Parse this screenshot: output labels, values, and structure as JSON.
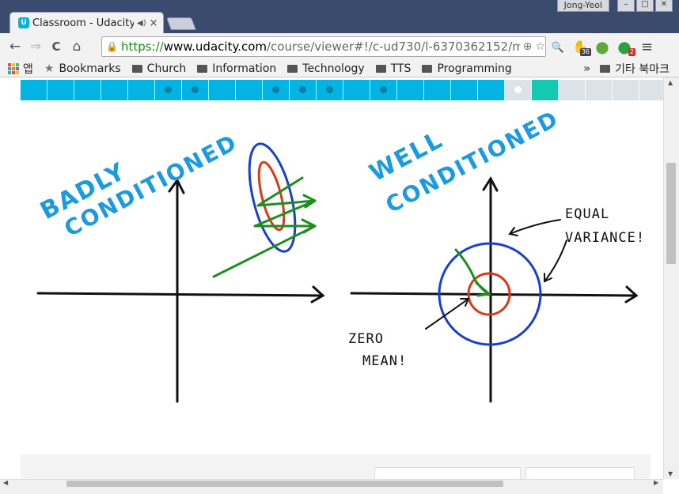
{
  "window": {
    "user": "Jong-Yeol",
    "minimize": "–",
    "maximize": "□",
    "close": "✕"
  },
  "tab": {
    "favicon": "U",
    "title": "Classroom - Udacity",
    "audio_icon": "speaker-icon",
    "close": "×"
  },
  "nav": {
    "back": "←",
    "forward": "⇒",
    "reload": "C",
    "home": "⌂"
  },
  "omnibox": {
    "lock_icon": "lock-icon",
    "scheme": "https://",
    "host": "www.udacity.com",
    "path": "/course/viewer#!/c-ud730/l-6370362152/m-",
    "zoom_icon": "⊕",
    "star_icon": "☆"
  },
  "extensions": [
    {
      "name": "search",
      "glyph": "🔍",
      "badge": "",
      "color": "#777777"
    },
    {
      "name": "adblock",
      "glyph": "✋",
      "badge": "36",
      "color": "#c0392b"
    },
    {
      "name": "evernote",
      "glyph": "●",
      "badge": "",
      "color": "#5fa83a"
    },
    {
      "name": "ext-d",
      "glyph": "●",
      "badge": "2",
      "color": "#2ea043"
    }
  ],
  "menu": "≡",
  "bookmarks": {
    "apps_label": "앱",
    "items": [
      "Bookmarks",
      "Church",
      "Information",
      "Technology",
      "TTS",
      "Programming"
    ],
    "overflow": "»",
    "other": "기타 북마크"
  },
  "progress": {
    "segments": [
      {
        "state": "done",
        "dot": false
      },
      {
        "state": "done",
        "dot": false
      },
      {
        "state": "done",
        "dot": false
      },
      {
        "state": "done",
        "dot": false
      },
      {
        "state": "done",
        "dot": false
      },
      {
        "state": "done",
        "dot": true
      },
      {
        "state": "done",
        "dot": true
      },
      {
        "state": "done",
        "dot": false
      },
      {
        "state": "done",
        "dot": false
      },
      {
        "state": "done",
        "dot": true
      },
      {
        "state": "done",
        "dot": true
      },
      {
        "state": "done",
        "dot": true
      },
      {
        "state": "done",
        "dot": false
      },
      {
        "state": "done",
        "dot": true
      },
      {
        "state": "done",
        "dot": false
      },
      {
        "state": "done",
        "dot": false
      },
      {
        "state": "done",
        "dot": false
      },
      {
        "state": "done",
        "dot": false
      },
      {
        "state": "current",
        "dot": true
      },
      {
        "state": "active",
        "dot": false
      },
      {
        "state": "todo",
        "dot": false
      },
      {
        "state": "todo",
        "dot": false
      },
      {
        "state": "todo",
        "dot": false
      },
      {
        "state": "todo",
        "dot": false
      }
    ],
    "colors": {
      "done": "#02b3e4",
      "active": "#15c8b2",
      "todo": "#dbe2e8",
      "dot_done": "#0a7fa6",
      "dot_current": "#ffffff"
    }
  },
  "sketch": {
    "left_title": [
      "BADLY",
      "CONDITIONED"
    ],
    "right_title": [
      "WELL",
      "CONDITIONED"
    ],
    "note_equal": "EQUAL",
    "note_variance": "VARIANCE!",
    "note_zero": "ZERO",
    "note_mean": "MEAN!",
    "colors": {
      "blue": "#1a3fcf",
      "red": "#d93a1a",
      "green": "#1c8f1c",
      "title": "#1a9ae0",
      "axis": "#111111"
    }
  }
}
